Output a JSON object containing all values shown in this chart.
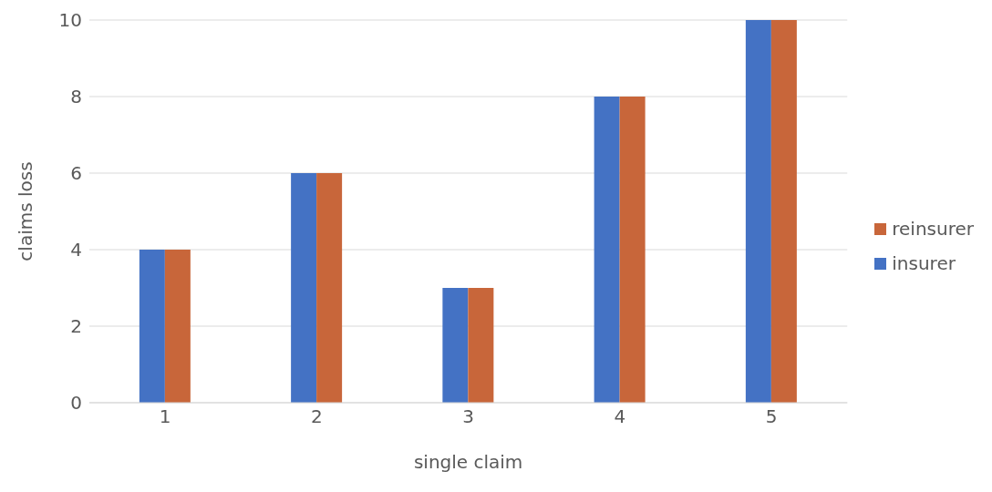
{
  "chart_data": {
    "type": "bar",
    "xlabel": "single claim",
    "ylabel": "claims loss",
    "categories": [
      "1",
      "2",
      "3",
      "4",
      "5"
    ],
    "series": [
      {
        "name": "insurer",
        "color": "#4472c4",
        "values": [
          4,
          6,
          3,
          8,
          10
        ]
      },
      {
        "name": "reinsurer",
        "color": "#c8663a",
        "values": [
          4,
          6,
          3,
          8,
          10
        ]
      }
    ],
    "ylim": [
      0,
      10
    ],
    "yticks": [
      0,
      2,
      4,
      6,
      8,
      10
    ],
    "grid": "y",
    "legend": "right"
  }
}
